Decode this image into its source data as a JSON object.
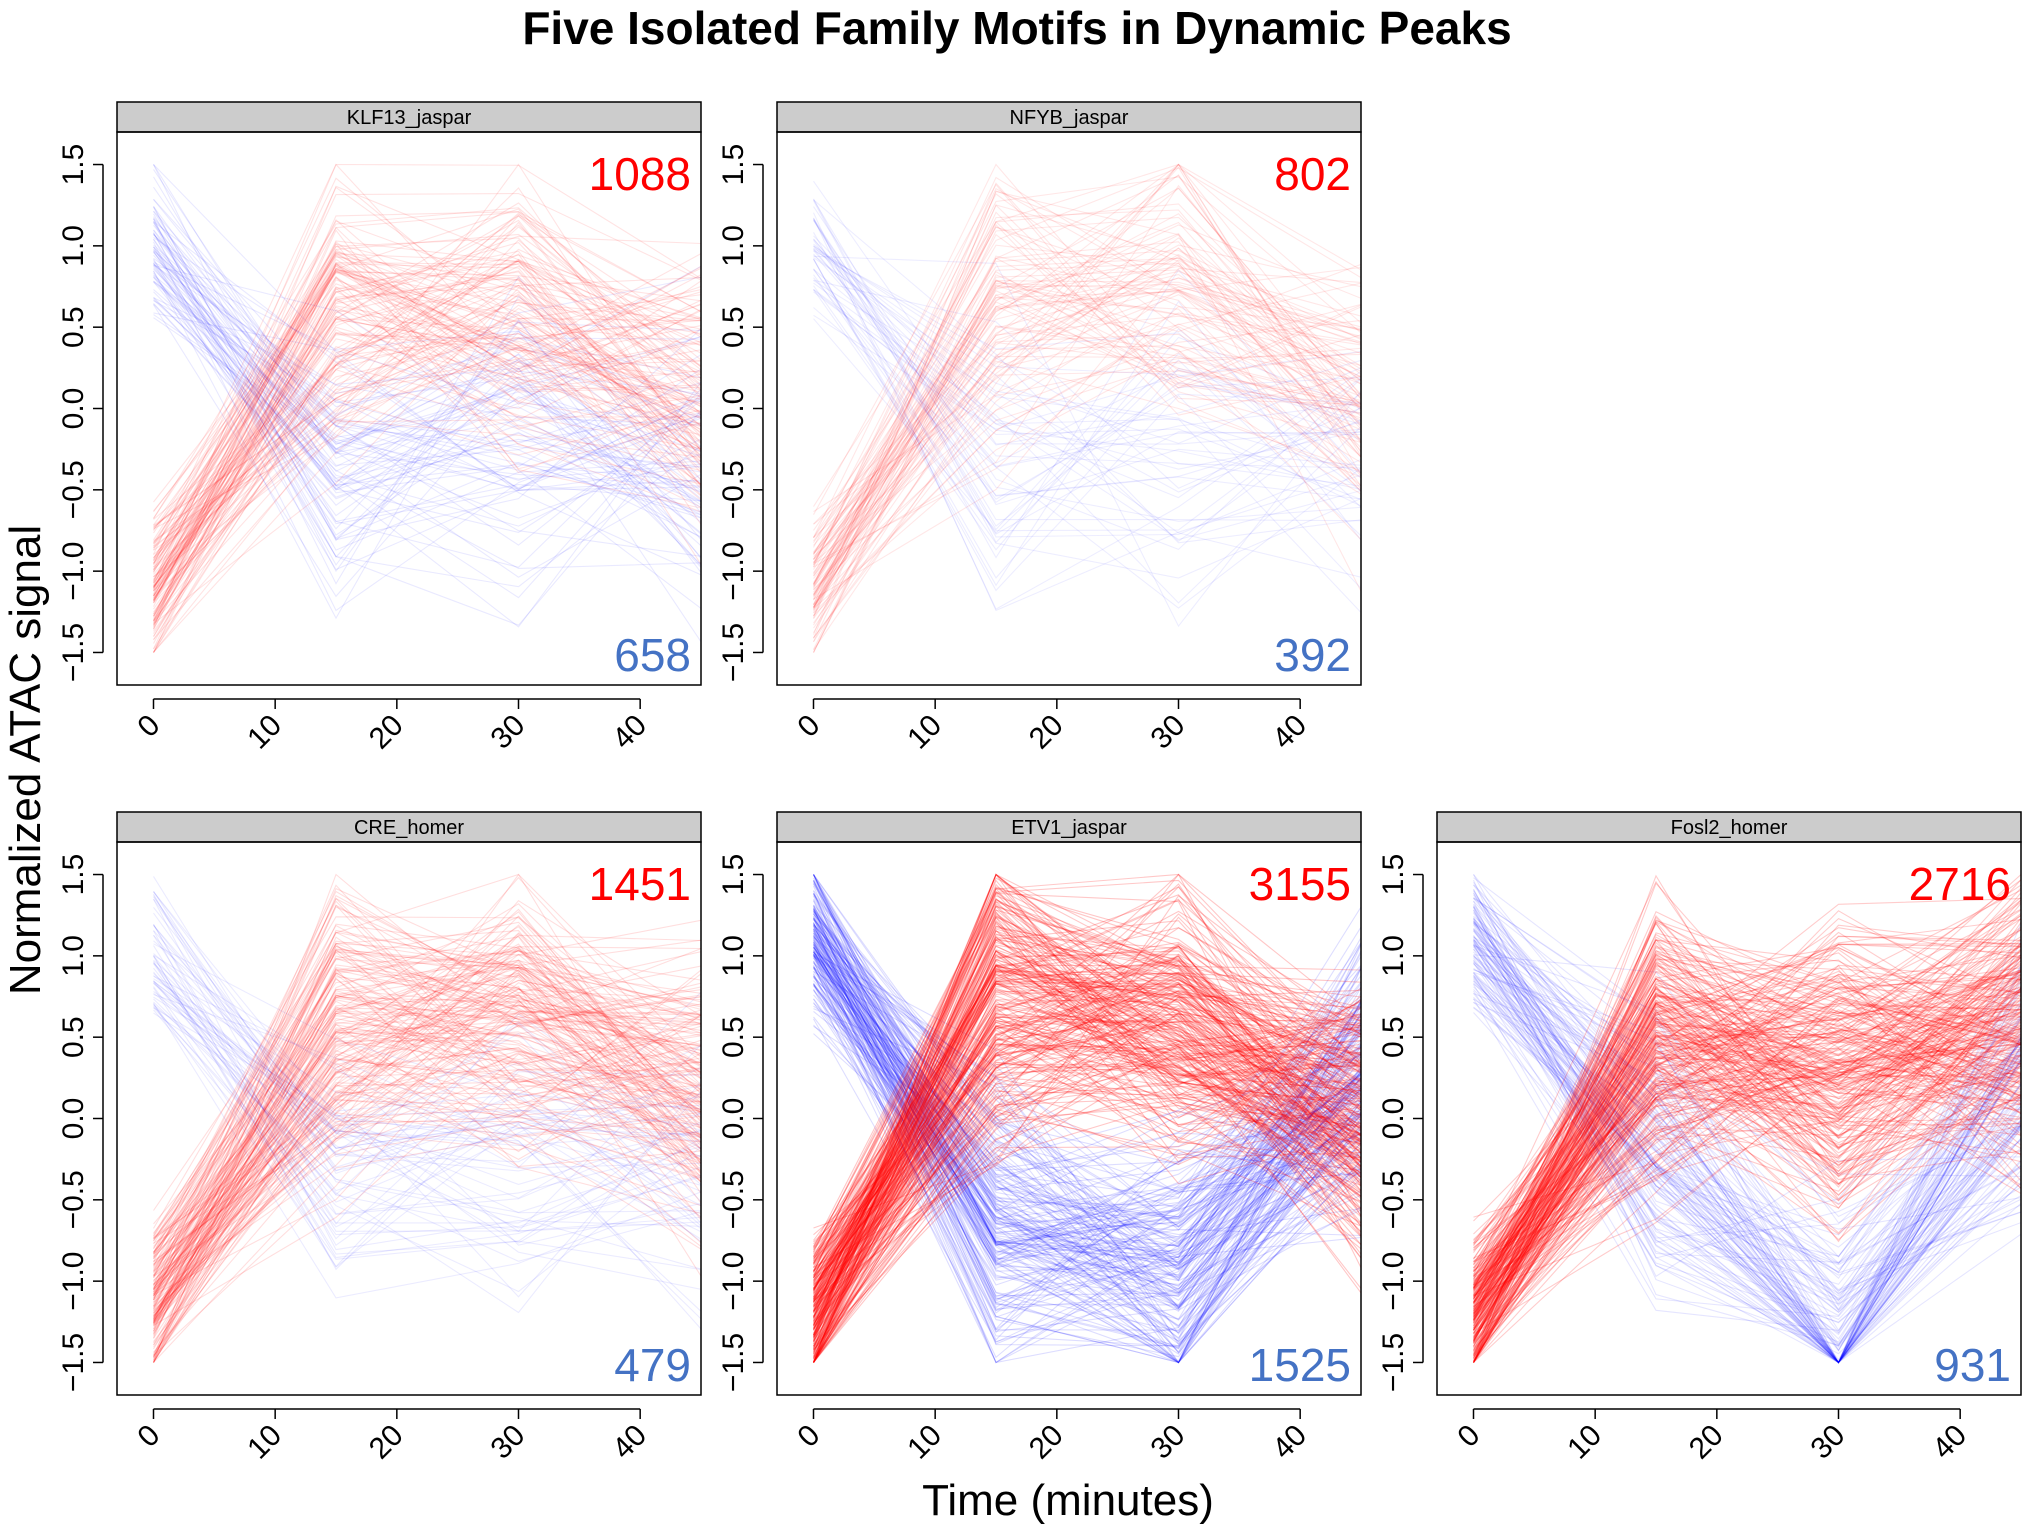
{
  "chart_data": {
    "type": "line",
    "title": "Five Isolated Family Motifs in Dynamic Peaks",
    "xlabel": "Time (minutes)",
    "ylabel": "Normalized ATAC signal",
    "x_ticks": [
      0,
      10,
      20,
      30,
      40
    ],
    "y_ticks": [
      1.5,
      1.0,
      0.5,
      0.0,
      -0.5,
      -1.0,
      -1.5
    ],
    "y_tick_labels": [
      "1.5",
      "1.0",
      "0.5",
      "0.0",
      "−0.5",
      "−1.0",
      "−1.5"
    ],
    "xlim": [
      -3,
      45
    ],
    "ylim": [
      -1.7,
      1.7
    ],
    "timepoints": [
      0,
      15,
      30,
      45
    ],
    "colors": {
      "up": "#ff0000",
      "down": "#0000ff",
      "up_label": "#ff0000",
      "down_label": "#4472c4"
    },
    "panels": [
      {
        "name": "KLF13_jaspar",
        "up_count": "1088",
        "down_count": "658",
        "up_density": 1088,
        "down_density": 658,
        "up_mean": [
          -1.1,
          0.6,
          0.55,
          0.2
        ],
        "down_mean": [
          1.0,
          -0.4,
          -0.2,
          -0.3
        ]
      },
      {
        "name": "NFYB_jaspar",
        "up_count": "802",
        "down_count": "392",
        "up_density": 802,
        "down_density": 392,
        "up_mean": [
          -1.1,
          0.55,
          0.8,
          0.05
        ],
        "down_mean": [
          1.0,
          -0.3,
          -0.3,
          -0.2
        ]
      },
      {
        "name": "CRE_homer",
        "up_count": "1451",
        "down_count": "479",
        "up_density": 1451,
        "down_density": 479,
        "up_mean": [
          -1.1,
          0.55,
          0.6,
          0.2
        ],
        "down_mean": [
          1.0,
          -0.3,
          -0.3,
          -0.3
        ]
      },
      {
        "name": "ETV1_jaspar",
        "up_count": "3155",
        "down_count": "1525",
        "up_density": 3155,
        "down_density": 1525,
        "up_mean": [
          -1.2,
          0.7,
          0.6,
          0.0
        ],
        "down_mean": [
          1.1,
          -0.7,
          -0.9,
          0.3
        ]
      },
      {
        "name": "Fosl2_homer",
        "up_count": "2716",
        "down_count": "931",
        "up_density": 2716,
        "down_density": 931,
        "up_mean": [
          -1.2,
          0.5,
          0.3,
          0.6
        ],
        "down_mean": [
          1.1,
          -0.3,
          -1.3,
          0.2
        ]
      }
    ]
  }
}
